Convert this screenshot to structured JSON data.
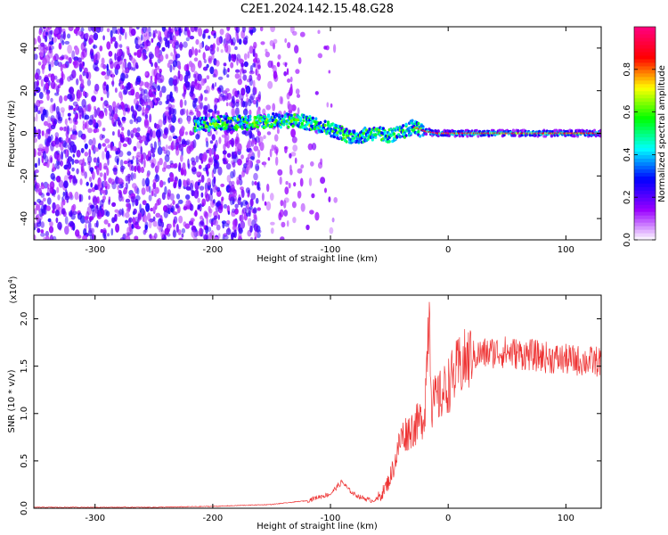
{
  "title": "C2E1.2024.142.15.48.G28",
  "chart_data": [
    {
      "type": "heatmap",
      "xlabel": "Height of straight line (km)",
      "ylabel": "Frequency (Hz)",
      "xlim": [
        -352,
        130
      ],
      "ylim": [
        -50,
        50
      ],
      "x_ticks": [
        -300,
        -200,
        -100,
        0,
        100
      ],
      "y_ticks": [
        -40,
        -20,
        0,
        20,
        40
      ],
      "colorbar": {
        "label": "Normalized spectral amplitude",
        "range": [
          0,
          1
        ],
        "ticks": [
          "0.0",
          "0.2",
          "0.4",
          "0.6",
          "0.8"
        ],
        "tick_values": [
          0,
          0.2,
          0.4,
          0.6,
          0.8
        ],
        "colors": [
          "#ffffff",
          "#9a00ff",
          "#0000ff",
          "#00ffff",
          "#00ff00",
          "#ffff00",
          "#ff0000",
          "#ff0080"
        ]
      },
      "noise_region_x": [
        -352,
        -130
      ],
      "ridge": {
        "x": [
          -210,
          -190,
          -170,
          -150,
          -130,
          -110,
          -95,
          -80,
          -65,
          -50,
          -40,
          -30,
          -20,
          -10,
          0,
          50,
          130
        ],
        "y": [
          4,
          5,
          5,
          6,
          6,
          4,
          1,
          -2,
          0,
          -1,
          0,
          3,
          1,
          0,
          0,
          0,
          0
        ]
      }
    },
    {
      "type": "line",
      "xlabel": "Height of straight line (km)",
      "ylabel": "SNR (10 * v/v)",
      "y_multiplier": "(x10",
      "y_multiplier_exp": "4",
      "y_multiplier_close": ")",
      "xlim": [
        -352,
        130
      ],
      "ylim": [
        0,
        2.25
      ],
      "x_ticks": [
        -300,
        -200,
        -100,
        0,
        100
      ],
      "y_ticks": [
        "0.0",
        "0.5",
        "1.0",
        "1.5",
        "2.0"
      ],
      "y_tick_values": [
        0,
        0.5,
        1.0,
        1.5,
        2.0
      ],
      "color": "#ee3333",
      "series": [
        {
          "x": [
            -352,
            -300,
            -250,
            -200,
            -150,
            -120,
            -110,
            -100,
            -95,
            -90,
            -85,
            -80,
            -75,
            -70,
            -65,
            -60,
            -55,
            -50,
            -45,
            -40,
            -35,
            -30,
            -25,
            -20,
            -16,
            -14,
            -10,
            -5,
            0,
            5,
            10,
            15,
            20,
            25,
            30,
            40,
            50,
            60,
            70,
            80,
            90,
            100,
            110,
            120,
            130
          ],
          "y": [
            0.01,
            0.01,
            0.01,
            0.02,
            0.04,
            0.08,
            0.12,
            0.15,
            0.22,
            0.28,
            0.2,
            0.15,
            0.12,
            0.1,
            0.08,
            0.1,
            0.18,
            0.3,
            0.5,
            0.75,
            0.8,
            0.85,
            0.9,
            1.0,
            2.2,
            1.1,
            1.15,
            1.2,
            1.3,
            1.4,
            1.5,
            1.55,
            1.6,
            1.62,
            1.63,
            1.65,
            1.65,
            1.63,
            1.62,
            1.6,
            1.58,
            1.57,
            1.56,
            1.55,
            1.55
          ]
        }
      ]
    }
  ]
}
